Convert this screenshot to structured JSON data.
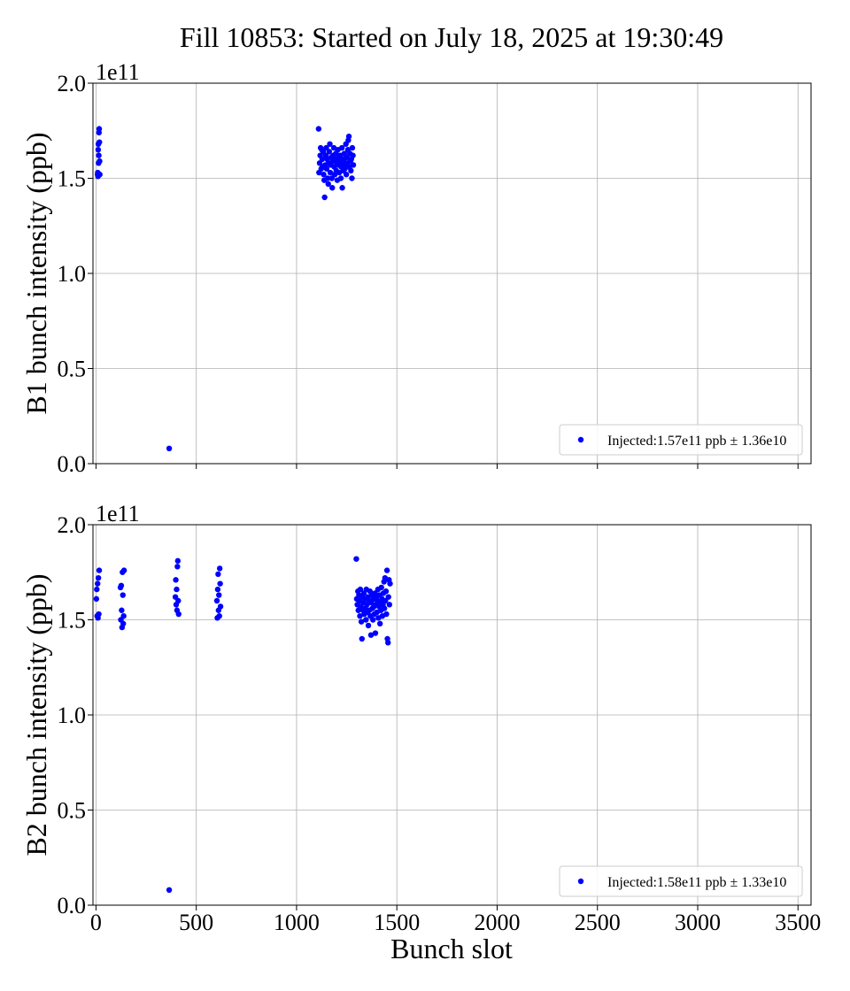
{
  "title": "Fill 10853: Started on July 18, 2025 at 19:30:49",
  "xlabel": "Bunch slot",
  "marker_color": "#0000ff",
  "chart_data": [
    {
      "type": "scatter",
      "ylabel": "B1 bunch intensity (ppb)",
      "y_offset_label": "1e11",
      "xlim": [
        -15,
        3565
      ],
      "ylim": [
        0.0,
        2.0
      ],
      "xticks": [
        0,
        500,
        1000,
        1500,
        2000,
        2500,
        3000,
        3500
      ],
      "yticks": [
        0.0,
        0.5,
        1.0,
        1.5,
        2.0
      ],
      "xtick_labels_visible": false,
      "grid": true,
      "legend": {
        "placement": "lower-right",
        "label": "Injected:1.57e11 ppb ± 1.36e10"
      },
      "points": [
        [
          8,
          1.52
        ],
        [
          9,
          1.53
        ],
        [
          10,
          1.51
        ],
        [
          11,
          1.65
        ],
        [
          12,
          1.68
        ],
        [
          13,
          1.58
        ],
        [
          14,
          1.62
        ],
        [
          15,
          1.74
        ],
        [
          16,
          1.76
        ],
        [
          17,
          1.69
        ],
        [
          18,
          1.59
        ],
        [
          19,
          1.52
        ],
        [
          365,
          0.08
        ],
        [
          1110,
          1.76
        ],
        [
          1112,
          1.53
        ],
        [
          1115,
          1.58
        ],
        [
          1118,
          1.62
        ],
        [
          1120,
          1.66
        ],
        [
          1123,
          1.55
        ],
        [
          1126,
          1.65
        ],
        [
          1128,
          1.6
        ],
        [
          1130,
          1.56
        ],
        [
          1133,
          1.64
        ],
        [
          1135,
          1.52
        ],
        [
          1138,
          1.49
        ],
        [
          1140,
          1.4
        ],
        [
          1143,
          1.57
        ],
        [
          1146,
          1.62
        ],
        [
          1148,
          1.66
        ],
        [
          1150,
          1.55
        ],
        [
          1153,
          1.6
        ],
        [
          1155,
          1.5
        ],
        [
          1158,
          1.47
        ],
        [
          1160,
          1.58
        ],
        [
          1163,
          1.64
        ],
        [
          1166,
          1.68
        ],
        [
          1168,
          1.53
        ],
        [
          1170,
          1.57
        ],
        [
          1173,
          1.61
        ],
        [
          1176,
          1.5
        ],
        [
          1178,
          1.45
        ],
        [
          1181,
          1.59
        ],
        [
          1183,
          1.62
        ],
        [
          1186,
          1.66
        ],
        [
          1188,
          1.56
        ],
        [
          1191,
          1.52
        ],
        [
          1193,
          1.6
        ],
        [
          1196,
          1.63
        ],
        [
          1198,
          1.54
        ],
        [
          1201,
          1.58
        ],
        [
          1203,
          1.49
        ],
        [
          1206,
          1.65
        ],
        [
          1208,
          1.57
        ],
        [
          1211,
          1.61
        ],
        [
          1213,
          1.53
        ],
        [
          1216,
          1.59
        ],
        [
          1218,
          1.62
        ],
        [
          1221,
          1.5
        ],
        [
          1223,
          1.56
        ],
        [
          1226,
          1.66
        ],
        [
          1228,
          1.45
        ],
        [
          1231,
          1.58
        ],
        [
          1233,
          1.54
        ],
        [
          1236,
          1.6
        ],
        [
          1238,
          1.63
        ],
        [
          1241,
          1.55
        ],
        [
          1243,
          1.57
        ],
        [
          1246,
          1.68
        ],
        [
          1248,
          1.52
        ],
        [
          1251,
          1.61
        ],
        [
          1253,
          1.58
        ],
        [
          1256,
          1.65
        ],
        [
          1258,
          1.7
        ],
        [
          1261,
          1.72
        ],
        [
          1263,
          1.56
        ],
        [
          1266,
          1.63
        ],
        [
          1268,
          1.59
        ],
        [
          1271,
          1.54
        ],
        [
          1273,
          1.6
        ],
        [
          1276,
          1.5
        ],
        [
          1278,
          1.66
        ],
        [
          1281,
          1.62
        ],
        [
          1283,
          1.57
        ]
      ]
    },
    {
      "type": "scatter",
      "ylabel": "B2 bunch intensity (ppb)",
      "y_offset_label": "1e11",
      "xlim": [
        -15,
        3565
      ],
      "ylim": [
        0.0,
        2.0
      ],
      "xticks": [
        0,
        500,
        1000,
        1500,
        2000,
        2500,
        3000,
        3500
      ],
      "yticks": [
        0.0,
        0.5,
        1.0,
        1.5,
        2.0
      ],
      "xtick_labels_visible": true,
      "grid": true,
      "legend": {
        "placement": "lower-right",
        "label": "Injected:1.58e11 ppb ± 1.33e10"
      },
      "points": [
        [
          2,
          1.61
        ],
        [
          4,
          1.66
        ],
        [
          6,
          1.52
        ],
        [
          8,
          1.69
        ],
        [
          10,
          1.51
        ],
        [
          12,
          1.72
        ],
        [
          14,
          1.53
        ],
        [
          16,
          1.76
        ],
        [
          122,
          1.67
        ],
        [
          124,
          1.5
        ],
        [
          126,
          1.68
        ],
        [
          128,
          1.55
        ],
        [
          130,
          1.46
        ],
        [
          132,
          1.75
        ],
        [
          134,
          1.63
        ],
        [
          136,
          1.48
        ],
        [
          138,
          1.52
        ],
        [
          140,
          1.76
        ],
        [
          396,
          1.62
        ],
        [
          398,
          1.71
        ],
        [
          400,
          1.58
        ],
        [
          402,
          1.66
        ],
        [
          404,
          1.55
        ],
        [
          406,
          1.78
        ],
        [
          408,
          1.81
        ],
        [
          410,
          1.6
        ],
        [
          412,
          1.53
        ],
        [
          603,
          1.6
        ],
        [
          605,
          1.51
        ],
        [
          607,
          1.66
        ],
        [
          609,
          1.74
        ],
        [
          611,
          1.55
        ],
        [
          613,
          1.63
        ],
        [
          615,
          1.52
        ],
        [
          617,
          1.77
        ],
        [
          619,
          1.69
        ],
        [
          621,
          1.57
        ],
        [
          365,
          0.08
        ],
        [
          1298,
          1.82
        ],
        [
          1300,
          1.61
        ],
        [
          1303,
          1.58
        ],
        [
          1306,
          1.65
        ],
        [
          1308,
          1.55
        ],
        [
          1311,
          1.63
        ],
        [
          1313,
          1.6
        ],
        [
          1316,
          1.52
        ],
        [
          1318,
          1.66
        ],
        [
          1321,
          1.57
        ],
        [
          1323,
          1.49
        ],
        [
          1326,
          1.4
        ],
        [
          1328,
          1.62
        ],
        [
          1331,
          1.55
        ],
        [
          1333,
          1.59
        ],
        [
          1336,
          1.64
        ],
        [
          1338,
          1.53
        ],
        [
          1341,
          1.61
        ],
        [
          1343,
          1.56
        ],
        [
          1346,
          1.5
        ],
        [
          1348,
          1.66
        ],
        [
          1351,
          1.58
        ],
        [
          1353,
          1.54
        ],
        [
          1356,
          1.62
        ],
        [
          1358,
          1.47
        ],
        [
          1361,
          1.6
        ],
        [
          1363,
          1.55
        ],
        [
          1366,
          1.65
        ],
        [
          1368,
          1.52
        ],
        [
          1371,
          1.42
        ],
        [
          1373,
          1.59
        ],
        [
          1376,
          1.63
        ],
        [
          1378,
          1.56
        ],
        [
          1381,
          1.5
        ],
        [
          1383,
          1.61
        ],
        [
          1386,
          1.57
        ],
        [
          1388,
          1.53
        ],
        [
          1391,
          1.64
        ],
        [
          1393,
          1.43
        ],
        [
          1396,
          1.58
        ],
        [
          1398,
          1.62
        ],
        [
          1401,
          1.54
        ],
        [
          1403,
          1.6
        ],
        [
          1406,
          1.66
        ],
        [
          1408,
          1.51
        ],
        [
          1411,
          1.57
        ],
        [
          1413,
          1.63
        ],
        [
          1416,
          1.48
        ],
        [
          1418,
          1.59
        ],
        [
          1421,
          1.55
        ],
        [
          1423,
          1.67
        ],
        [
          1426,
          1.61
        ],
        [
          1428,
          1.52
        ],
        [
          1431,
          1.58
        ],
        [
          1433,
          1.64
        ],
        [
          1436,
          1.7
        ],
        [
          1438,
          1.56
        ],
        [
          1441,
          1.72
        ],
        [
          1443,
          1.6
        ],
        [
          1446,
          1.65
        ],
        [
          1448,
          1.53
        ],
        [
          1451,
          1.76
        ],
        [
          1453,
          1.4
        ],
        [
          1456,
          1.38
        ],
        [
          1458,
          1.62
        ],
        [
          1461,
          1.71
        ],
        [
          1463,
          1.58
        ],
        [
          1466,
          1.69
        ]
      ]
    }
  ]
}
